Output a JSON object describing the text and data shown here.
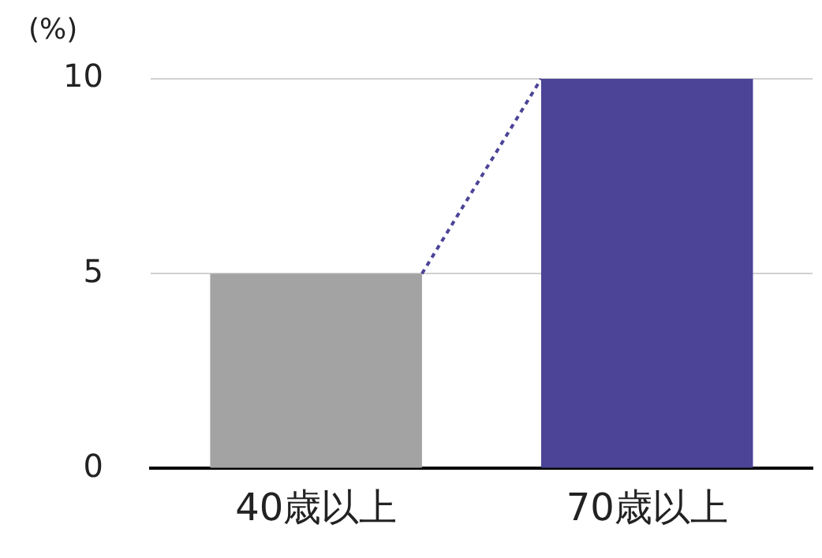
{
  "chart_data": {
    "type": "bar",
    "ylabel": "(%)",
    "categories": [
      "40歳以上",
      "70歳以上"
    ],
    "values": [
      5,
      10
    ],
    "colors": [
      "#a3a3a3",
      "#4b4497"
    ],
    "ylim": [
      0,
      10
    ],
    "yticks": [
      0,
      5,
      10
    ],
    "grid": "y",
    "legend": false
  }
}
